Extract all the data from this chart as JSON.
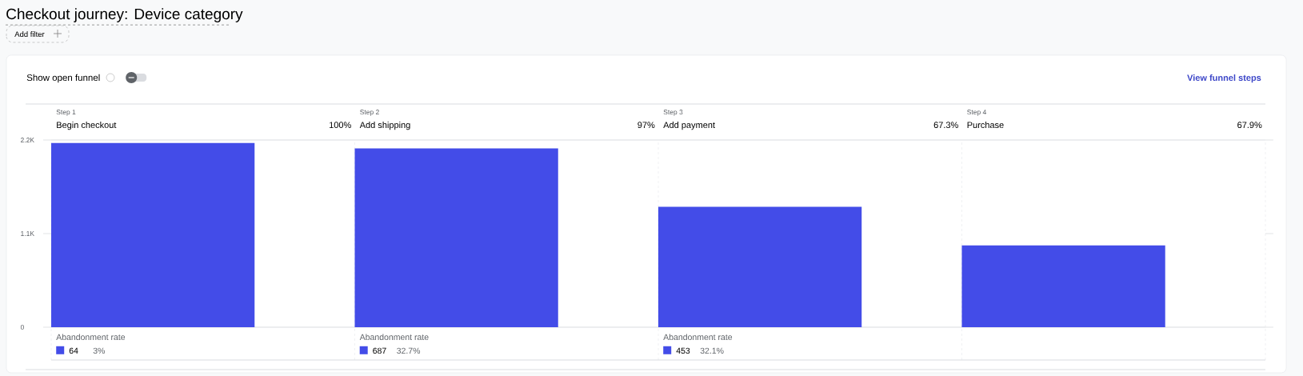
{
  "chart_data": {
    "type": "bar",
    "title": "Checkout journey: Device category",
    "categories": [
      "Begin checkout",
      "Add shipping",
      "Add payment",
      "Purchase"
    ],
    "values": [
      2165,
      2101,
      1414,
      961
    ],
    "color": "#434ce8",
    "ylim": [
      0,
      2200
    ],
    "yticks": [
      0,
      {
        "value": 1100,
        "label": "1.1K"
      },
      {
        "value": 2200,
        "label": "2.2K"
      }
    ],
    "annotations": [
      "Add filter",
      "Show open funnel",
      "View funnel steps",
      "Step 1",
      "100%",
      "Abandonment rate",
      "64",
      "3%",
      "Step 2",
      "97%",
      "Abandonment rate",
      "687",
      "32.7%",
      "Step 3",
      "67.3%",
      "Abandonment rate",
      "453",
      "32.1%",
      "Step 4",
      "67.9%"
    ]
  }
}
